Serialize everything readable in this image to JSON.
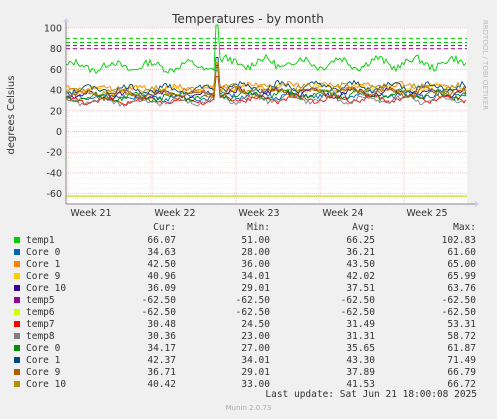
{
  "chart_data": {
    "type": "line",
    "title": "Temperatures - by month",
    "ylabel": "degrees Celsius",
    "watermark": "RRDTOOL / TOBI OETIKER",
    "ylim": [
      -70,
      100
    ],
    "yticks": [
      100,
      80,
      60,
      40,
      20,
      0,
      -20,
      -40,
      -60
    ],
    "xticks": [
      "Week 21",
      "Week 22",
      "Week 23",
      "Week 24",
      "Week 25"
    ],
    "grid": true,
    "threshold_lines": [
      {
        "color": "#00cc00",
        "values": [
          90,
          86
        ]
      },
      {
        "color": "#880088",
        "values": [
          83,
          80
        ]
      }
    ],
    "series": [
      {
        "name": "temp1",
        "color": "#00cc00",
        "cur": "66.07",
        "min": "51.00",
        "avg": "66.25",
        "max": "102.83"
      },
      {
        "name": "Core 0",
        "color": "#0066b3",
        "cur": "34.63",
        "min": "28.00",
        "avg": "36.21",
        "max": "61.60"
      },
      {
        "name": "Core 1",
        "color": "#ff8000",
        "cur": "42.50",
        "min": "36.00",
        "avg": "43.50",
        "max": "65.00"
      },
      {
        "name": "Core 9",
        "color": "#ffcc00",
        "cur": "40.96",
        "min": "34.01",
        "avg": "42.02",
        "max": "65.99"
      },
      {
        "name": "Core 10",
        "color": "#330099",
        "cur": "36.09",
        "min": "29.01",
        "avg": "37.51",
        "max": "63.76"
      },
      {
        "name": "temp5",
        "color": "#990099",
        "cur": "-62.50",
        "min": "-62.50",
        "avg": "-62.50",
        "max": "-62.50"
      },
      {
        "name": "temp6",
        "color": "#ccff00",
        "cur": "-62.50",
        "min": "-62.50",
        "avg": "-62.50",
        "max": "-62.50"
      },
      {
        "name": "temp7",
        "color": "#ff0000",
        "cur": "30.48",
        "min": "24.50",
        "avg": "31.49",
        "max": "53.31"
      },
      {
        "name": "temp8",
        "color": "#808080",
        "cur": "30.36",
        "min": "23.00",
        "avg": "31.31",
        "max": "58.72"
      },
      {
        "name": "Core 0",
        "color": "#008f00",
        "cur": "34.17",
        "min": "27.00",
        "avg": "35.65",
        "max": "61.87"
      },
      {
        "name": "Core 1",
        "color": "#00487d",
        "cur": "42.37",
        "min": "34.01",
        "avg": "43.30",
        "max": "71.49"
      },
      {
        "name": "Core 9",
        "color": "#b35a00",
        "cur": "36.71",
        "min": "29.01",
        "avg": "37.89",
        "max": "66.79"
      },
      {
        "name": "Core 10",
        "color": "#b38f00",
        "cur": "40.42",
        "min": "33.00",
        "avg": "41.53",
        "max": "66.72"
      }
    ]
  },
  "legend": {
    "headers": {
      "cur": "Cur:",
      "min": "Min:",
      "avg": "Avg:",
      "max": "Max:"
    }
  },
  "footer": {
    "last_update": "Last update: Sat Jun 21 18:00:08 2025",
    "munin": "Munin 2.0.73"
  }
}
